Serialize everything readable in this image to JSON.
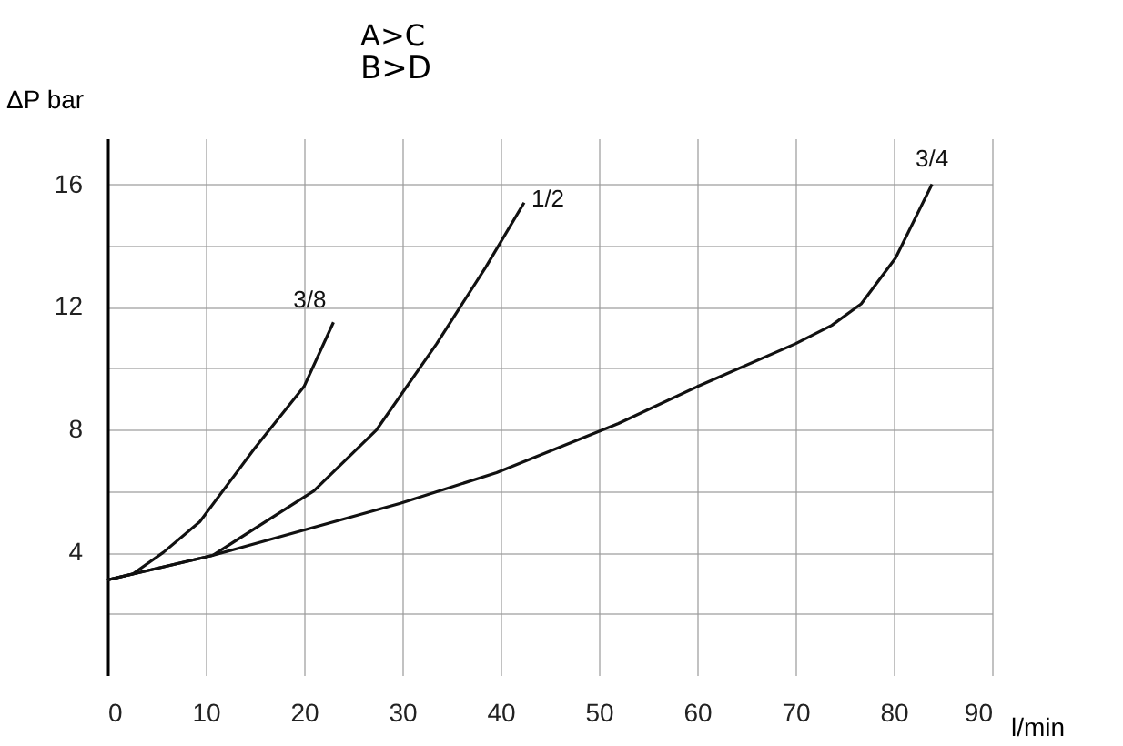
{
  "chart_data": {
    "type": "line",
    "title": "A>C",
    "subtitle": "B>D",
    "xlabel": "l/min",
    "ylabel": "ΔP bar",
    "xlim": [
      0,
      90
    ],
    "xticks": [
      0,
      10,
      20,
      30,
      40,
      50,
      60,
      70,
      80,
      90
    ],
    "ylim": [
      0,
      17.5
    ],
    "yticks": [
      {
        "value": 2,
        "label": null
      },
      4,
      {
        "value": 6,
        "label": null
      },
      8,
      {
        "value": 10,
        "label": null
      },
      12,
      {
        "value": 14,
        "label": null
      },
      16
    ],
    "grid": true,
    "legend": false,
    "marker": "none",
    "line_style": "solid",
    "series": [
      {
        "name": "3/8",
        "color": "#111111",
        "x": [
          0,
          2.6,
          5.7,
          9.4,
          15,
          20,
          23
        ],
        "values": [
          3.1,
          3.3,
          4.0,
          5.0,
          7.4,
          9.4,
          11.5
        ]
      },
      {
        "name": "1/2",
        "color": "#111111",
        "x": [
          0,
          10.7,
          21,
          27.4,
          33.5,
          38.5,
          42.4
        ],
        "values": [
          3.1,
          3.9,
          6.0,
          8.0,
          10.8,
          13.3,
          15.4
        ]
      },
      {
        "name": "3/4",
        "color": "#111111",
        "x": [
          0,
          10.7,
          29.8,
          39.6,
          52,
          60,
          70,
          73.7,
          76.7,
          80.2,
          83.9
        ],
        "values": [
          3.1,
          3.9,
          5.6,
          6.6,
          8.2,
          9.4,
          10.8,
          11.4,
          12.1,
          13.6,
          16.0
        ]
      }
    ]
  }
}
